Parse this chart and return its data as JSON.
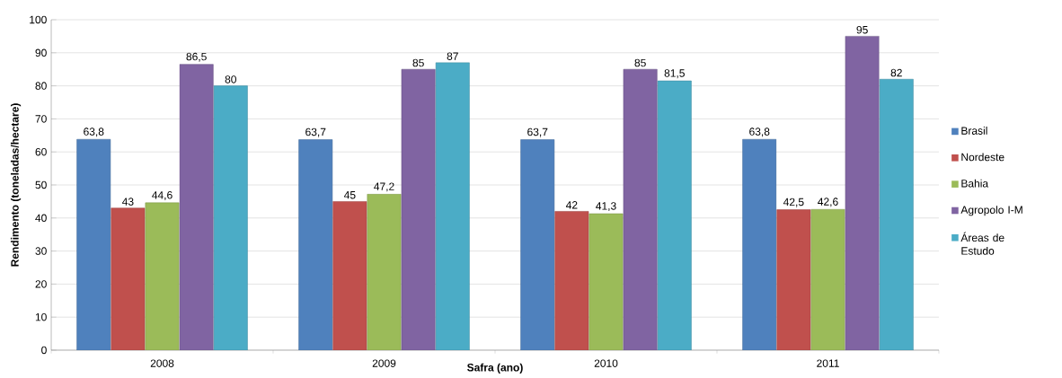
{
  "chart_data": {
    "type": "bar",
    "xlabel": "Safra (ano)",
    "ylabel": "Rendimento (toneladas/hectare)",
    "categories": [
      "2008",
      "2009",
      "2010",
      "2011"
    ],
    "series": [
      {
        "name": "Brasil",
        "color": "#4f81bd",
        "values": [
          63.8,
          63.7,
          63.7,
          63.8
        ],
        "value_labels": [
          "63,8",
          "63,7",
          "63,7",
          "63,8"
        ]
      },
      {
        "name": "Nordeste",
        "color": "#c0504d",
        "values": [
          43,
          45,
          42,
          42.5
        ],
        "value_labels": [
          "43",
          "45",
          "42",
          "42,5"
        ]
      },
      {
        "name": "Bahia",
        "color": "#9bbb59",
        "values": [
          44.6,
          47.2,
          41.3,
          42.6
        ],
        "value_labels": [
          "44,6",
          "47,2",
          "41,3",
          "42,6"
        ]
      },
      {
        "name": "Agropolo I-M",
        "color": "#8064a2",
        "values": [
          86.5,
          85,
          85,
          95
        ],
        "value_labels": [
          "86,5",
          "85",
          "85",
          "95"
        ]
      },
      {
        "name": "Áreas de Estudo",
        "color": "#4bacc6",
        "values": [
          80,
          87,
          81.5,
          82
        ],
        "value_labels": [
          "80",
          "87",
          "81,5",
          "82"
        ]
      }
    ],
    "ylim": [
      0,
      100
    ],
    "yticks": [
      0,
      10,
      20,
      30,
      40,
      50,
      60,
      70,
      80,
      90,
      100
    ],
    "grid": "y",
    "legend": "right"
  }
}
